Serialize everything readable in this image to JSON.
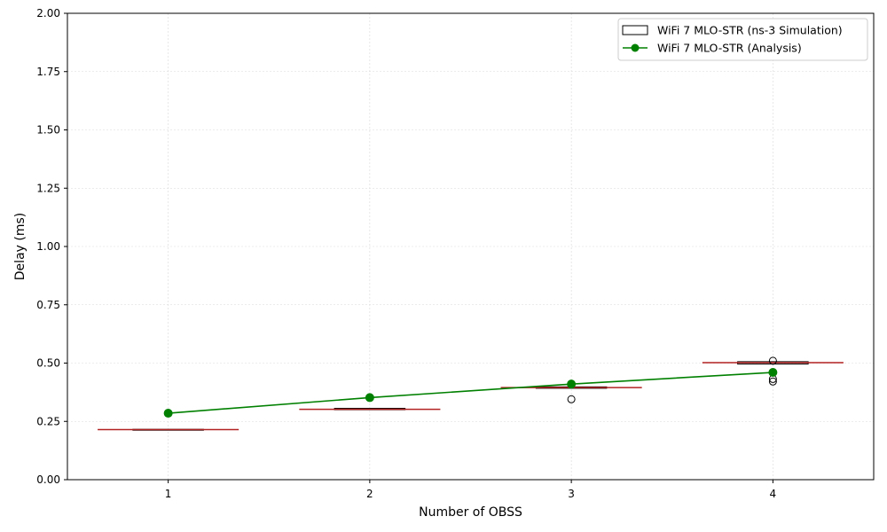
{
  "chart_data": {
    "type": "box+line",
    "xlabel": "Number of OBSS",
    "ylabel": "Delay (ms)",
    "xlim": [
      0.5,
      4.5
    ],
    "ylim": [
      0,
      2
    ],
    "grid": true,
    "legend_position": "top-right",
    "x_ticks": [
      1,
      2,
      3,
      4
    ],
    "x_tick_labels": [
      "1",
      "2",
      "3",
      "4"
    ],
    "y_ticks": [
      0,
      0.25,
      0.5,
      0.75,
      1.0,
      1.25,
      1.5,
      1.75,
      2.0
    ],
    "y_tick_labels": [
      "0.00",
      "0.25",
      "0.50",
      "0.75",
      "1.00",
      "1.25",
      "1.50",
      "1.75",
      "2.00"
    ],
    "series": [
      {
        "name": "WiFi 7 MLO-STR (ns-3 Simulation)",
        "kind": "box",
        "color": "#000000",
        "median_color": "#b22222",
        "boxes": [
          {
            "x": 1,
            "q1": 0.213,
            "median": 0.215,
            "q3": 0.216,
            "whisker_low": 0.213,
            "whisker_high": 0.216,
            "outliers": []
          },
          {
            "x": 2,
            "q1": 0.3,
            "median": 0.302,
            "q3": 0.306,
            "whisker_low": 0.3,
            "whisker_high": 0.306,
            "outliers": []
          },
          {
            "x": 3,
            "q1": 0.392,
            "median": 0.395,
            "q3": 0.398,
            "whisker_low": 0.392,
            "whisker_high": 0.398,
            "outliers": [
              0.345
            ]
          },
          {
            "x": 4,
            "q1": 0.496,
            "median": 0.502,
            "q3": 0.506,
            "whisker_low": 0.496,
            "whisker_high": 0.506,
            "outliers": [
              0.51,
              0.432,
              0.421
            ]
          }
        ]
      },
      {
        "name": "WiFi 7 MLO-STR (Analysis)",
        "kind": "line",
        "color": "#008000",
        "x": [
          1,
          2,
          3,
          4
        ],
        "values": [
          0.285,
          0.352,
          0.41,
          0.46
        ]
      }
    ]
  }
}
